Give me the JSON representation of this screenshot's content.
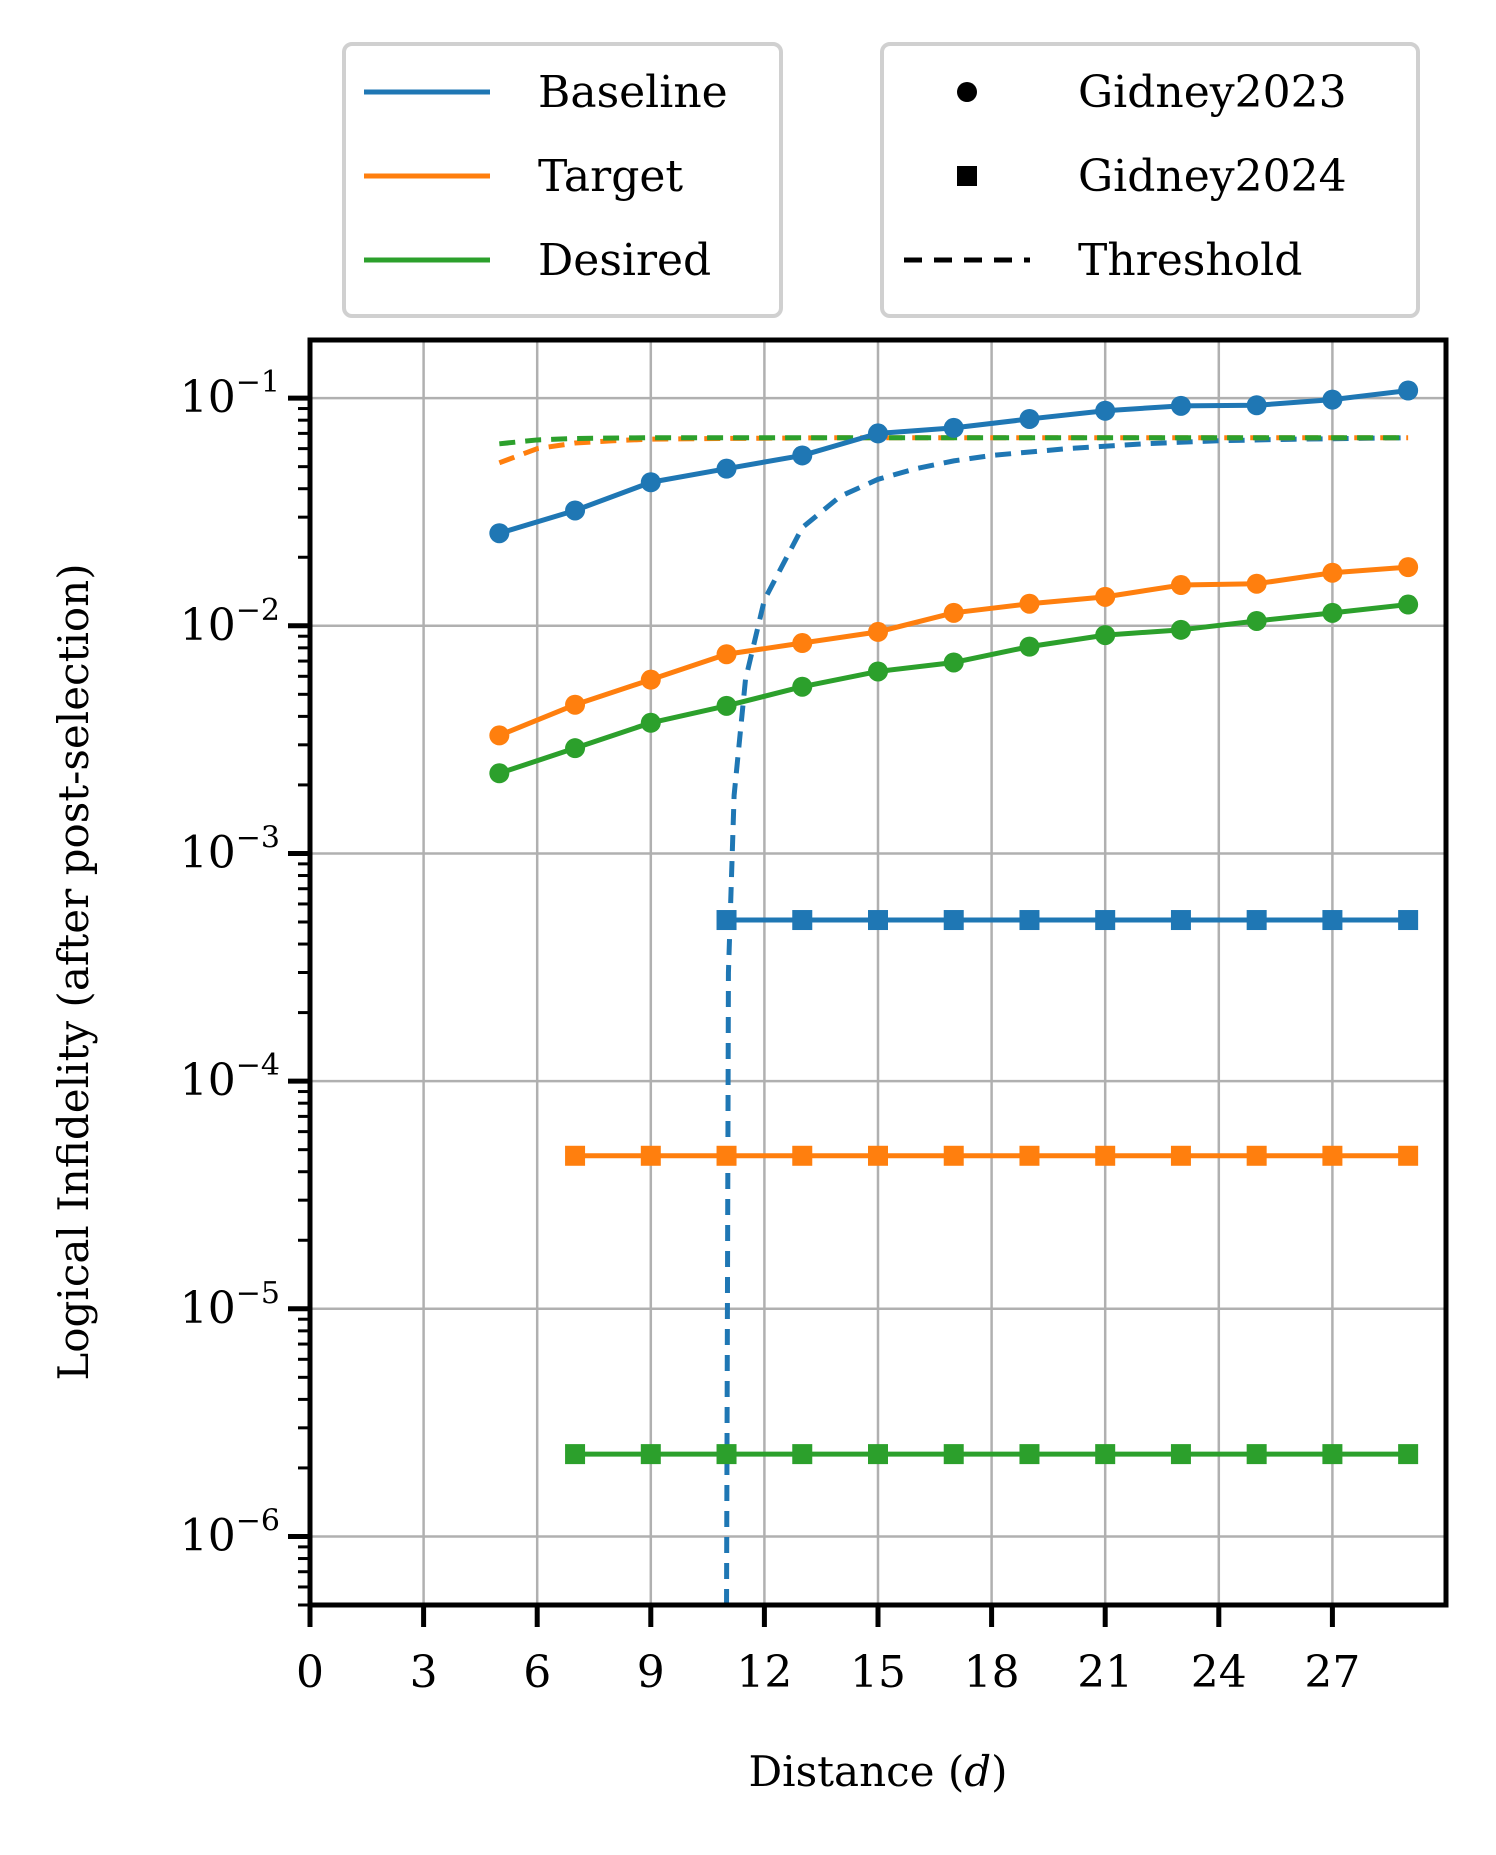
{
  "chart_data": {
    "type": "line",
    "title": "",
    "xlabel": "Distance (d)",
    "ylabel": "Logical Infidelity (after post-selection)",
    "xlim": [
      0,
      30
    ],
    "ylim": [
      5e-07,
      0.18
    ],
    "yscale": "log",
    "grid": true,
    "x_ticks": [
      0,
      3,
      6,
      9,
      12,
      15,
      18,
      21,
      24,
      27
    ],
    "x_tick_labels": [
      "0",
      "3",
      "6",
      "9",
      "12",
      "15",
      "18",
      "21",
      "24",
      "27"
    ],
    "y_ticks": [
      1e-06,
      1e-05,
      0.0001,
      0.001,
      0.01,
      0.1
    ],
    "y_tick_labels": [
      {
        "base": "10",
        "exp": "−6"
      },
      {
        "base": "10",
        "exp": "−5"
      },
      {
        "base": "10",
        "exp": "−4"
      },
      {
        "base": "10",
        "exp": "−3"
      },
      {
        "base": "10",
        "exp": "−2"
      },
      {
        "base": "10",
        "exp": "−1"
      }
    ],
    "colors": {
      "Baseline": "#1f77b4",
      "Target": "#ff7f0e",
      "Desired": "#2ca02c"
    },
    "legend_color": {
      "title_placement": "top-left",
      "entries": [
        {
          "label": "Baseline",
          "color": "#1f77b4"
        },
        {
          "label": "Target",
          "color": "#ff7f0e"
        },
        {
          "label": "Desired",
          "color": "#2ca02c"
        }
      ]
    },
    "legend_style": {
      "placement": "top-right",
      "entries": [
        {
          "label": "Gidney2023",
          "marker": "circle"
        },
        {
          "label": "Gidney2024",
          "marker": "square"
        },
        {
          "label": "Threshold",
          "marker": "dashed-line"
        }
      ]
    },
    "series": [
      {
        "name": "Baseline",
        "method": "Gidney2023",
        "marker": "circle",
        "x": [
          5,
          7,
          9,
          11,
          13,
          15,
          17,
          19,
          21,
          23,
          25,
          27,
          29
        ],
        "values": [
          0.0255,
          0.0321,
          0.0427,
          0.049,
          0.056,
          0.07,
          0.074,
          0.081,
          0.088,
          0.0925,
          0.093,
          0.0985,
          0.108
        ]
      },
      {
        "name": "Target",
        "method": "Gidney2023",
        "marker": "circle",
        "x": [
          5,
          7,
          9,
          11,
          13,
          15,
          17,
          19,
          21,
          23,
          25,
          27,
          29
        ],
        "values": [
          0.0033,
          0.0045,
          0.0058,
          0.0075,
          0.0084,
          0.0094,
          0.0114,
          0.0125,
          0.0134,
          0.0151,
          0.0153,
          0.0171,
          0.0181
        ]
      },
      {
        "name": "Desired",
        "method": "Gidney2023",
        "marker": "circle",
        "x": [
          5,
          7,
          9,
          11,
          13,
          15,
          17,
          19,
          21,
          23,
          25,
          27,
          29
        ],
        "values": [
          0.00225,
          0.0029,
          0.00375,
          0.00445,
          0.0054,
          0.0063,
          0.0069,
          0.0081,
          0.0091,
          0.0096,
          0.0105,
          0.0114,
          0.0124
        ]
      },
      {
        "name": "Baseline",
        "method": "Gidney2024",
        "marker": "square",
        "x": [
          11,
          13,
          15,
          17,
          19,
          21,
          23,
          25,
          27,
          29
        ],
        "values": [
          0.00051,
          0.00051,
          0.00051,
          0.00051,
          0.00051,
          0.00051,
          0.00051,
          0.00051,
          0.00051,
          0.00051
        ]
      },
      {
        "name": "Target",
        "method": "Gidney2024",
        "marker": "square",
        "x": [
          7,
          9,
          11,
          13,
          15,
          17,
          19,
          21,
          23,
          25,
          27,
          29
        ],
        "values": [
          4.7e-05,
          4.7e-05,
          4.7e-05,
          4.7e-05,
          4.7e-05,
          4.7e-05,
          4.7e-05,
          4.7e-05,
          4.7e-05,
          4.7e-05,
          4.7e-05,
          4.7e-05
        ]
      },
      {
        "name": "Desired",
        "method": "Gidney2024",
        "marker": "square",
        "x": [
          7,
          9,
          11,
          13,
          15,
          17,
          19,
          21,
          23,
          25,
          27,
          29
        ],
        "values": [
          2.3e-06,
          2.3e-06,
          2.3e-06,
          2.3e-06,
          2.3e-06,
          2.3e-06,
          2.3e-06,
          2.3e-06,
          2.3e-06,
          2.3e-06,
          2.3e-06,
          2.3e-06
        ]
      }
    ],
    "threshold_curves": [
      {
        "name": "Baseline",
        "method": "Threshold",
        "style": "dashed",
        "x": [
          11.0,
          11.05,
          11.2,
          11.5,
          12,
          13,
          14,
          15,
          16,
          17,
          18,
          20,
          22,
          24,
          26,
          29
        ],
        "values": [
          5e-07,
          0.0003,
          0.0018,
          0.0058,
          0.013,
          0.027,
          0.037,
          0.044,
          0.049,
          0.053,
          0.056,
          0.06,
          0.063,
          0.065,
          0.066,
          0.067
        ]
      },
      {
        "name": "Target",
        "method": "Threshold",
        "style": "dashed",
        "x": [
          5,
          6,
          7,
          8,
          9,
          11,
          14,
          18,
          22,
          26,
          29
        ],
        "values": [
          0.052,
          0.06,
          0.0635,
          0.065,
          0.066,
          0.0665,
          0.067,
          0.067,
          0.067,
          0.067,
          0.067
        ]
      },
      {
        "name": "Desired",
        "method": "Threshold",
        "style": "dashed",
        "x": [
          5,
          6,
          7,
          9,
          12,
          16,
          20,
          24,
          29
        ],
        "values": [
          0.063,
          0.0655,
          0.0665,
          0.067,
          0.067,
          0.067,
          0.067,
          0.067,
          0.067
        ]
      }
    ]
  }
}
